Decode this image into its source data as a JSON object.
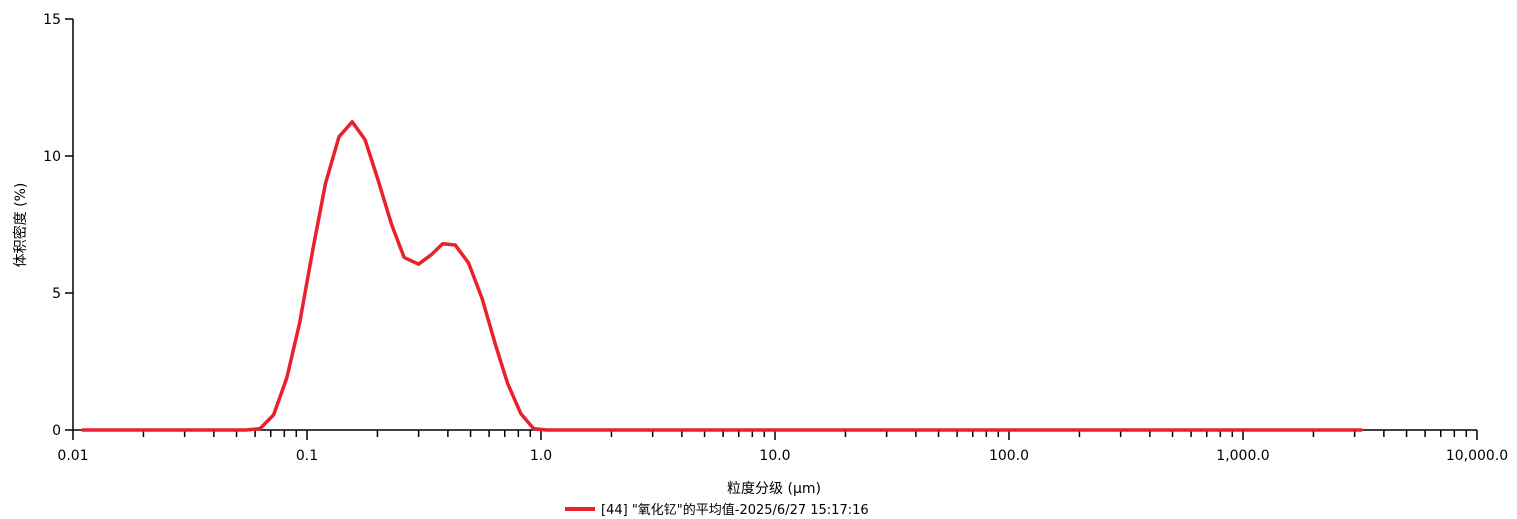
{
  "chart_data": {
    "type": "line",
    "title": "",
    "xlabel": "粒度分级 (μm)",
    "ylabel": "体积密度 (%)",
    "x_scale": "log",
    "xlim": [
      0.01,
      10000
    ],
    "ylim": [
      0,
      15
    ],
    "x_ticks": [
      0.01,
      0.1,
      1.0,
      10.0,
      100.0,
      1000.0,
      10000.0
    ],
    "x_tick_labels": [
      "0.01",
      "0.1",
      "1.0",
      "10.0",
      "100.0",
      "1,000.0",
      "10,000.0"
    ],
    "y_ticks": [
      0,
      5,
      10,
      15
    ],
    "y_tick_labels": [
      "0",
      "5",
      "10",
      "15"
    ],
    "grid": false,
    "legend_position": "bottom-center",
    "series": [
      {
        "name": "[44] \"氧化钇\"的平均值-2025/6/27 15:17:16",
        "color": "#e8212c",
        "x": [
          0.011,
          0.02,
          0.04,
          0.055,
          0.063,
          0.072,
          0.082,
          0.093,
          0.106,
          0.12,
          0.137,
          0.156,
          0.177,
          0.2,
          0.23,
          0.26,
          0.3,
          0.34,
          0.38,
          0.43,
          0.49,
          0.56,
          0.64,
          0.72,
          0.82,
          0.93,
          1.05,
          2.0,
          10.0,
          100.0,
          1000.0,
          3200.0
        ],
        "y": [
          0,
          0,
          0,
          0,
          0.05,
          0.55,
          1.9,
          3.9,
          6.6,
          9.0,
          10.7,
          11.25,
          10.6,
          9.2,
          7.5,
          6.3,
          6.05,
          6.4,
          6.8,
          6.75,
          6.1,
          4.8,
          3.1,
          1.7,
          0.6,
          0.05,
          0,
          0,
          0,
          0,
          0,
          0
        ]
      }
    ]
  }
}
